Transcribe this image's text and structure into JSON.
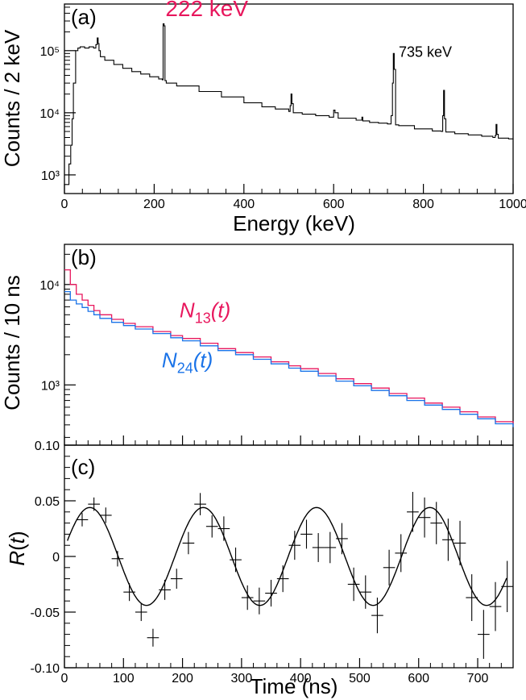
{
  "figure": {
    "colors": {
      "axis": "#000000",
      "red": "#e8175d",
      "blue": "#1a73e8"
    }
  },
  "chart_data": [
    {
      "type": "line",
      "panel": "a",
      "panel_label": "(a)",
      "xlabel": "Energy (keV)",
      "ylabel": "Counts / 2 keV",
      "xlim": [
        0,
        1000
      ],
      "ylim_log10": [
        2.7,
        5.75
      ],
      "yscale": "log",
      "x_ticks": [
        0,
        200,
        400,
        600,
        800,
        1000
      ],
      "x_tick_labels": [
        "0",
        "200",
        "400",
        "600",
        "800",
        "1000"
      ],
      "y_ticks": [
        1000,
        10000,
        100000
      ],
      "y_tick_labels": [
        "10³",
        "10⁴",
        "10⁵"
      ],
      "annotations": [
        {
          "text": "222 keV",
          "x": 225,
          "y": 360000,
          "color": "#e8175d"
        },
        {
          "text": "735 keV",
          "x": 745,
          "y": 80000,
          "color": "#000000"
        }
      ],
      "series": [
        {
          "name": "spectrum",
          "color": "#000000",
          "x": [
            0,
            5,
            10,
            14,
            17,
            20,
            25,
            30,
            35,
            45,
            55,
            65,
            70,
            73,
            75,
            77,
            80,
            90,
            110,
            130,
            150,
            170,
            190,
            210,
            218,
            220,
            222,
            224,
            227,
            250,
            300,
            350,
            400,
            440,
            470,
            500,
            503,
            505,
            507,
            510,
            530,
            560,
            590,
            600,
            603,
            610,
            650,
            663,
            665,
            680,
            700,
            720,
            728,
            731,
            733,
            735,
            738,
            745,
            780,
            820,
            840,
            843,
            845,
            847,
            850,
            870,
            900,
            930,
            955,
            960,
            962,
            964,
            967,
            990,
            1000
          ],
          "values": [
            700,
            700,
            1500,
            3000,
            8000,
            30000,
            100000,
            110000,
            115000,
            110000,
            115000,
            110000,
            125000,
            160000,
            130000,
            100000,
            80000,
            70000,
            60000,
            52000,
            46000,
            42000,
            38000,
            35000,
            34000,
            270000,
            250000,
            33000,
            30000,
            27000,
            22000,
            18000,
            14500,
            12500,
            11500,
            10500,
            13000,
            20000,
            14000,
            10000,
            9500,
            9000,
            8500,
            11000,
            10000,
            8200,
            7600,
            8500,
            7400,
            7000,
            6800,
            6600,
            9000,
            30000,
            90000,
            50000,
            6400,
            6200,
            5500,
            5100,
            5000,
            9000,
            23000,
            8000,
            4900,
            4600,
            4400,
            4200,
            4000,
            4300,
            6500,
            4500,
            3900,
            3800,
            3700
          ]
        }
      ]
    },
    {
      "type": "line",
      "panel": "b",
      "panel_label": "(b)",
      "xlabel": "",
      "ylabel": "Counts / 10 ns",
      "xlim": [
        0,
        760
      ],
      "ylim_log10": [
        2.4,
        4.4
      ],
      "yscale": "log",
      "x_ticks": [
        0,
        100,
        200,
        300,
        400,
        500,
        600,
        700
      ],
      "y_ticks": [
        1000,
        10000
      ],
      "y_tick_labels": [
        "10³",
        "10⁴"
      ],
      "series": [
        {
          "name": "N13(t)",
          "name_base": "N",
          "name_sub": "13",
          "name_tail": "(t)",
          "color": "#e8175d",
          "label_x": 195,
          "label_y": 4700,
          "x": [
            0,
            10,
            20,
            30,
            40,
            50,
            60,
            80,
            100,
            120,
            150,
            180,
            200,
            230,
            260,
            290,
            320,
            350,
            380,
            400,
            430,
            460,
            490,
            520,
            550,
            580,
            610,
            640,
            670,
            700,
            730,
            760
          ],
          "values": [
            14000,
            10000,
            8000,
            7000,
            6200,
            5500,
            5000,
            4500,
            4100,
            3800,
            3400,
            3100,
            2900,
            2600,
            2300,
            2100,
            1900,
            1700,
            1550,
            1450,
            1300,
            1150,
            1030,
            930,
            820,
            740,
            660,
            600,
            540,
            480,
            430,
            400
          ]
        },
        {
          "name": "N24(t)",
          "name_base": "N",
          "name_sub": "24",
          "name_tail": "(t)",
          "color": "#1a73e8",
          "label_x": 165,
          "label_y": 1500,
          "x": [
            0,
            10,
            20,
            30,
            40,
            50,
            60,
            80,
            100,
            120,
            150,
            180,
            200,
            230,
            260,
            290,
            320,
            350,
            380,
            400,
            430,
            460,
            490,
            520,
            550,
            580,
            610,
            640,
            670,
            700,
            730,
            760
          ],
          "values": [
            8500,
            7000,
            6400,
            5900,
            5400,
            5000,
            4600,
            4200,
            3900,
            3600,
            3250,
            2950,
            2750,
            2450,
            2200,
            2000,
            1800,
            1620,
            1470,
            1370,
            1230,
            1090,
            980,
            880,
            780,
            700,
            630,
            570,
            510,
            460,
            410,
            380
          ]
        }
      ]
    },
    {
      "type": "scatter",
      "panel": "c",
      "panel_label": "(c)",
      "xlabel": "Time (ns)",
      "ylabel": "R(t)",
      "ylabel_base": "R",
      "ylabel_tail": "(t)",
      "xlim": [
        0,
        760
      ],
      "ylim": [
        -0.1,
        0.1
      ],
      "x_ticks": [
        0,
        100,
        200,
        300,
        400,
        500,
        600,
        700
      ],
      "x_tick_labels": [
        "0",
        "100",
        "200",
        "300",
        "400",
        "500",
        "600",
        "700"
      ],
      "y_ticks": [
        -0.1,
        -0.05,
        0,
        0.05,
        0.1
      ],
      "y_tick_labels": [
        "-0.10",
        "-0.05",
        "0",
        "0.05",
        "0.10"
      ],
      "points": {
        "x": [
          30,
          50,
          70,
          90,
          110,
          130,
          150,
          170,
          190,
          210,
          230,
          250,
          270,
          290,
          310,
          330,
          350,
          370,
          390,
          410,
          430,
          450,
          470,
          490,
          510,
          530,
          550,
          570,
          590,
          610,
          630,
          650,
          670,
          690,
          710,
          730,
          750
        ],
        "y": [
          0.033,
          0.047,
          0.037,
          -0.002,
          -0.032,
          -0.05,
          -0.073,
          -0.03,
          -0.02,
          0.012,
          0.047,
          0.027,
          0.025,
          -0.003,
          -0.037,
          -0.04,
          -0.033,
          -0.02,
          0.01,
          0.02,
          0.008,
          0.008,
          0.016,
          -0.025,
          -0.032,
          -0.053,
          -0.01,
          0.003,
          0.04,
          0.035,
          0.03,
          0.015,
          0.012,
          -0.037,
          -0.07,
          -0.045,
          -0.027
        ],
        "err": [
          0.006,
          0.006,
          0.007,
          0.007,
          0.008,
          0.008,
          0.008,
          0.009,
          0.009,
          0.01,
          0.01,
          0.01,
          0.011,
          0.011,
          0.011,
          0.012,
          0.012,
          0.012,
          0.013,
          0.013,
          0.013,
          0.014,
          0.014,
          0.015,
          0.015,
          0.016,
          0.016,
          0.017,
          0.018,
          0.018,
          0.019,
          0.019,
          0.02,
          0.021,
          0.022,
          0.022,
          0.023
        ]
      },
      "fit": {
        "amplitude": 0.044,
        "period_ns": 192,
        "phase_peak_ns": 43
      }
    }
  ]
}
